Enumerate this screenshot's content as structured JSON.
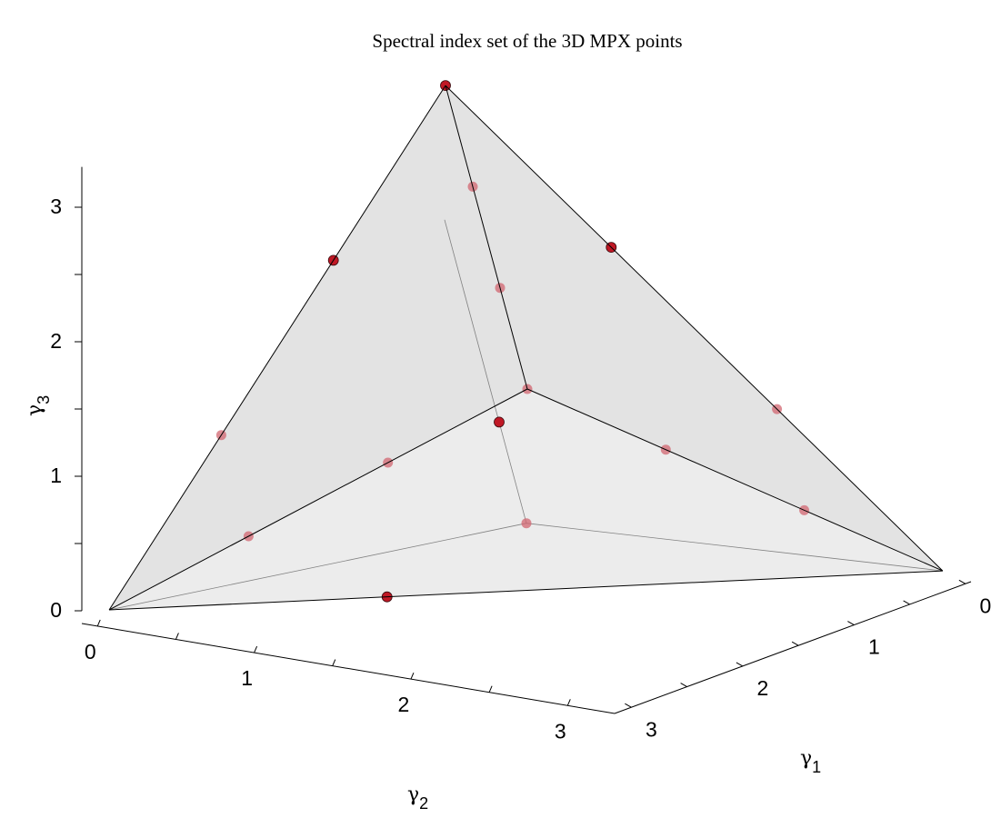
{
  "chart_data": {
    "type": "scatter",
    "title": "Spectral index set of the 3D MPX points",
    "axes": {
      "x": {
        "label": "γ",
        "subscript": "1",
        "ticks": [
          0,
          1,
          2,
          3
        ],
        "tick_labels": [
          "0",
          "1",
          "2",
          "3"
        ],
        "range": [
          0,
          3
        ]
      },
      "y": {
        "label": "γ",
        "subscript": "2",
        "ticks": [
          0,
          1,
          2,
          3
        ],
        "tick_labels": [
          "0",
          "1",
          "2",
          "3"
        ],
        "range": [
          0,
          3
        ]
      },
      "z": {
        "label": "γ",
        "subscript": "3",
        "ticks": [
          0,
          1,
          2,
          3
        ],
        "tick_labels": [
          "0",
          "1",
          "2",
          "3"
        ],
        "range": [
          0,
          3
        ]
      }
    },
    "grid": false,
    "legend": "none",
    "colors": {
      "surface_fill": "#dcdcdc",
      "edge": "#000000",
      "hidden_edge": "#555555",
      "point_visible": "#c01825",
      "point_behind": "#d26570"
    },
    "simplex_vertices": [
      [
        0,
        0,
        0
      ],
      [
        3,
        0,
        0
      ],
      [
        0,
        3,
        0
      ],
      [
        0,
        0,
        3
      ]
    ],
    "points": [
      {
        "x": 0,
        "y": 0,
        "z": 0,
        "visible": false
      },
      {
        "x": 0,
        "y": 0,
        "z": 1,
        "visible": false
      },
      {
        "x": 0,
        "y": 0,
        "z": 2,
        "visible": false
      },
      {
        "x": 0,
        "y": 0,
        "z": 3,
        "visible": true
      },
      {
        "x": 1,
        "y": 0,
        "z": 2,
        "visible": true
      },
      {
        "x": 2,
        "y": 0,
        "z": 1,
        "visible": false
      },
      {
        "x": 0,
        "y": 1,
        "z": 2,
        "visible": true
      },
      {
        "x": 0,
        "y": 2,
        "z": 1,
        "visible": false
      },
      {
        "x": 1,
        "y": 1,
        "z": 1,
        "visible": true
      },
      {
        "x": 1,
        "y": 0,
        "z": 0,
        "visible": false
      },
      {
        "x": 2,
        "y": 0,
        "z": 0,
        "visible": false
      },
      {
        "x": 0,
        "y": 1,
        "z": 0,
        "visible": false
      },
      {
        "x": 0,
        "y": 2,
        "z": 0,
        "visible": false
      },
      {
        "x": 1,
        "y": 1,
        "z": 0,
        "visible": false
      },
      {
        "x": 1,
        "y": 2,
        "z": 0,
        "visible": true
      }
    ]
  }
}
